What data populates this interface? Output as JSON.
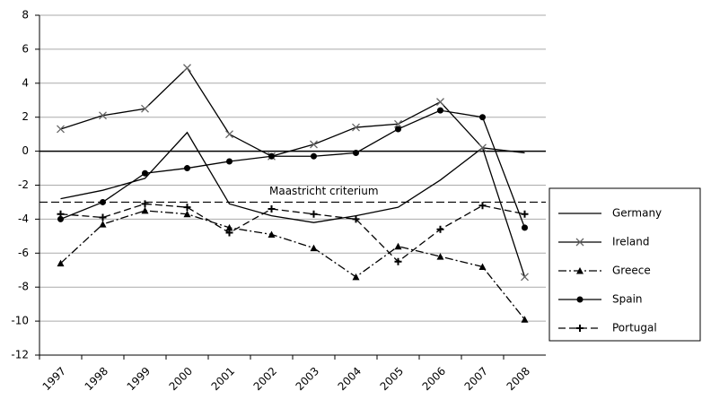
{
  "chart_data": {
    "type": "line",
    "categories": [
      "1997",
      "1998",
      "1999",
      "2000",
      "2001",
      "2002",
      "2003",
      "2004",
      "2005",
      "2006",
      "2007",
      "2008"
    ],
    "series": [
      {
        "name": "Germany",
        "color": "#000000",
        "dash": "solid",
        "marker": "none",
        "values": [
          -2.8,
          -2.3,
          -1.6,
          1.1,
          -3.1,
          -3.8,
          -4.2,
          -3.8,
          -3.3,
          -1.7,
          0.2,
          -0.1
        ]
      },
      {
        "name": "Ireland",
        "color": "#000000",
        "dash": "solid",
        "marker": "x",
        "values": [
          1.3,
          2.1,
          2.5,
          4.9,
          1.0,
          -0.3,
          0.4,
          1.4,
          1.6,
          2.9,
          0.2,
          -7.4
        ]
      },
      {
        "name": "Greece",
        "color": "#000000",
        "dash": "dashdot",
        "marker": "triangle",
        "values": [
          -6.6,
          -4.3,
          -3.5,
          -3.7,
          -4.5,
          -4.9,
          -5.7,
          -7.4,
          -5.6,
          -6.2,
          -6.8,
          -9.9
        ]
      },
      {
        "name": "Spain",
        "color": "#000000",
        "dash": "solid",
        "marker": "circle",
        "values": [
          -4.0,
          -3.0,
          -1.3,
          -1.0,
          -0.6,
          -0.3,
          -0.3,
          -0.1,
          1.3,
          2.4,
          2.0,
          -4.5
        ]
      },
      {
        "name": "Portugal",
        "color": "#000000",
        "dash": "dashed",
        "marker": "plus",
        "values": [
          -3.7,
          -3.9,
          -3.1,
          -3.3,
          -4.8,
          -3.4,
          -3.7,
          -4.0,
          -6.5,
          -4.6,
          -3.2,
          -3.7
        ]
      }
    ],
    "reference_line": {
      "value": -3,
      "label": "Maastricht criterium"
    },
    "ylim": [
      -12,
      8
    ],
    "yticks": [
      -12,
      -10,
      -8,
      -6,
      -4,
      -2,
      0,
      2,
      4,
      6,
      8
    ],
    "grid": true,
    "legend": "right"
  }
}
